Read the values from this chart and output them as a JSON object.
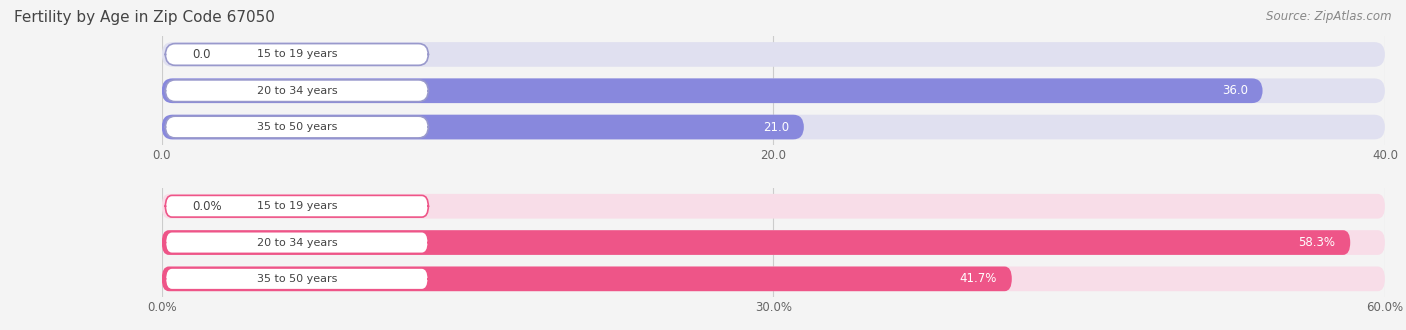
{
  "title": "Fertility by Age in Zip Code 67050",
  "source": "Source: ZipAtlas.com",
  "top_chart": {
    "categories": [
      "15 to 19 years",
      "20 to 34 years",
      "35 to 50 years"
    ],
    "values": [
      0.0,
      36.0,
      21.0
    ],
    "bar_color": "#8888dd",
    "bg_color": "#e0e0f0",
    "xlim": [
      0,
      40
    ],
    "xticks": [
      0.0,
      20.0,
      40.0
    ],
    "xtick_labels": [
      "0.0",
      "20.0",
      "40.0"
    ],
    "value_labels": [
      "0.0",
      "36.0",
      "21.0"
    ],
    "label_box_color": "#9999cc"
  },
  "bottom_chart": {
    "categories": [
      "15 to 19 years",
      "20 to 34 years",
      "35 to 50 years"
    ],
    "values": [
      0.0,
      58.3,
      41.7
    ],
    "bar_color": "#ee5588",
    "bg_color": "#f8dde8",
    "xlim": [
      0,
      60
    ],
    "xticks": [
      0.0,
      30.0,
      60.0
    ],
    "xtick_labels": [
      "0.0%",
      "30.0%",
      "60.0%"
    ],
    "value_labels": [
      "0.0%",
      "58.3%",
      "41.7%"
    ],
    "label_box_color": "#ee5588"
  },
  "title_color": "#444444",
  "source_color": "#888888",
  "background_color": "#f4f4f4",
  "label_box_facecolor": "#ffffff"
}
